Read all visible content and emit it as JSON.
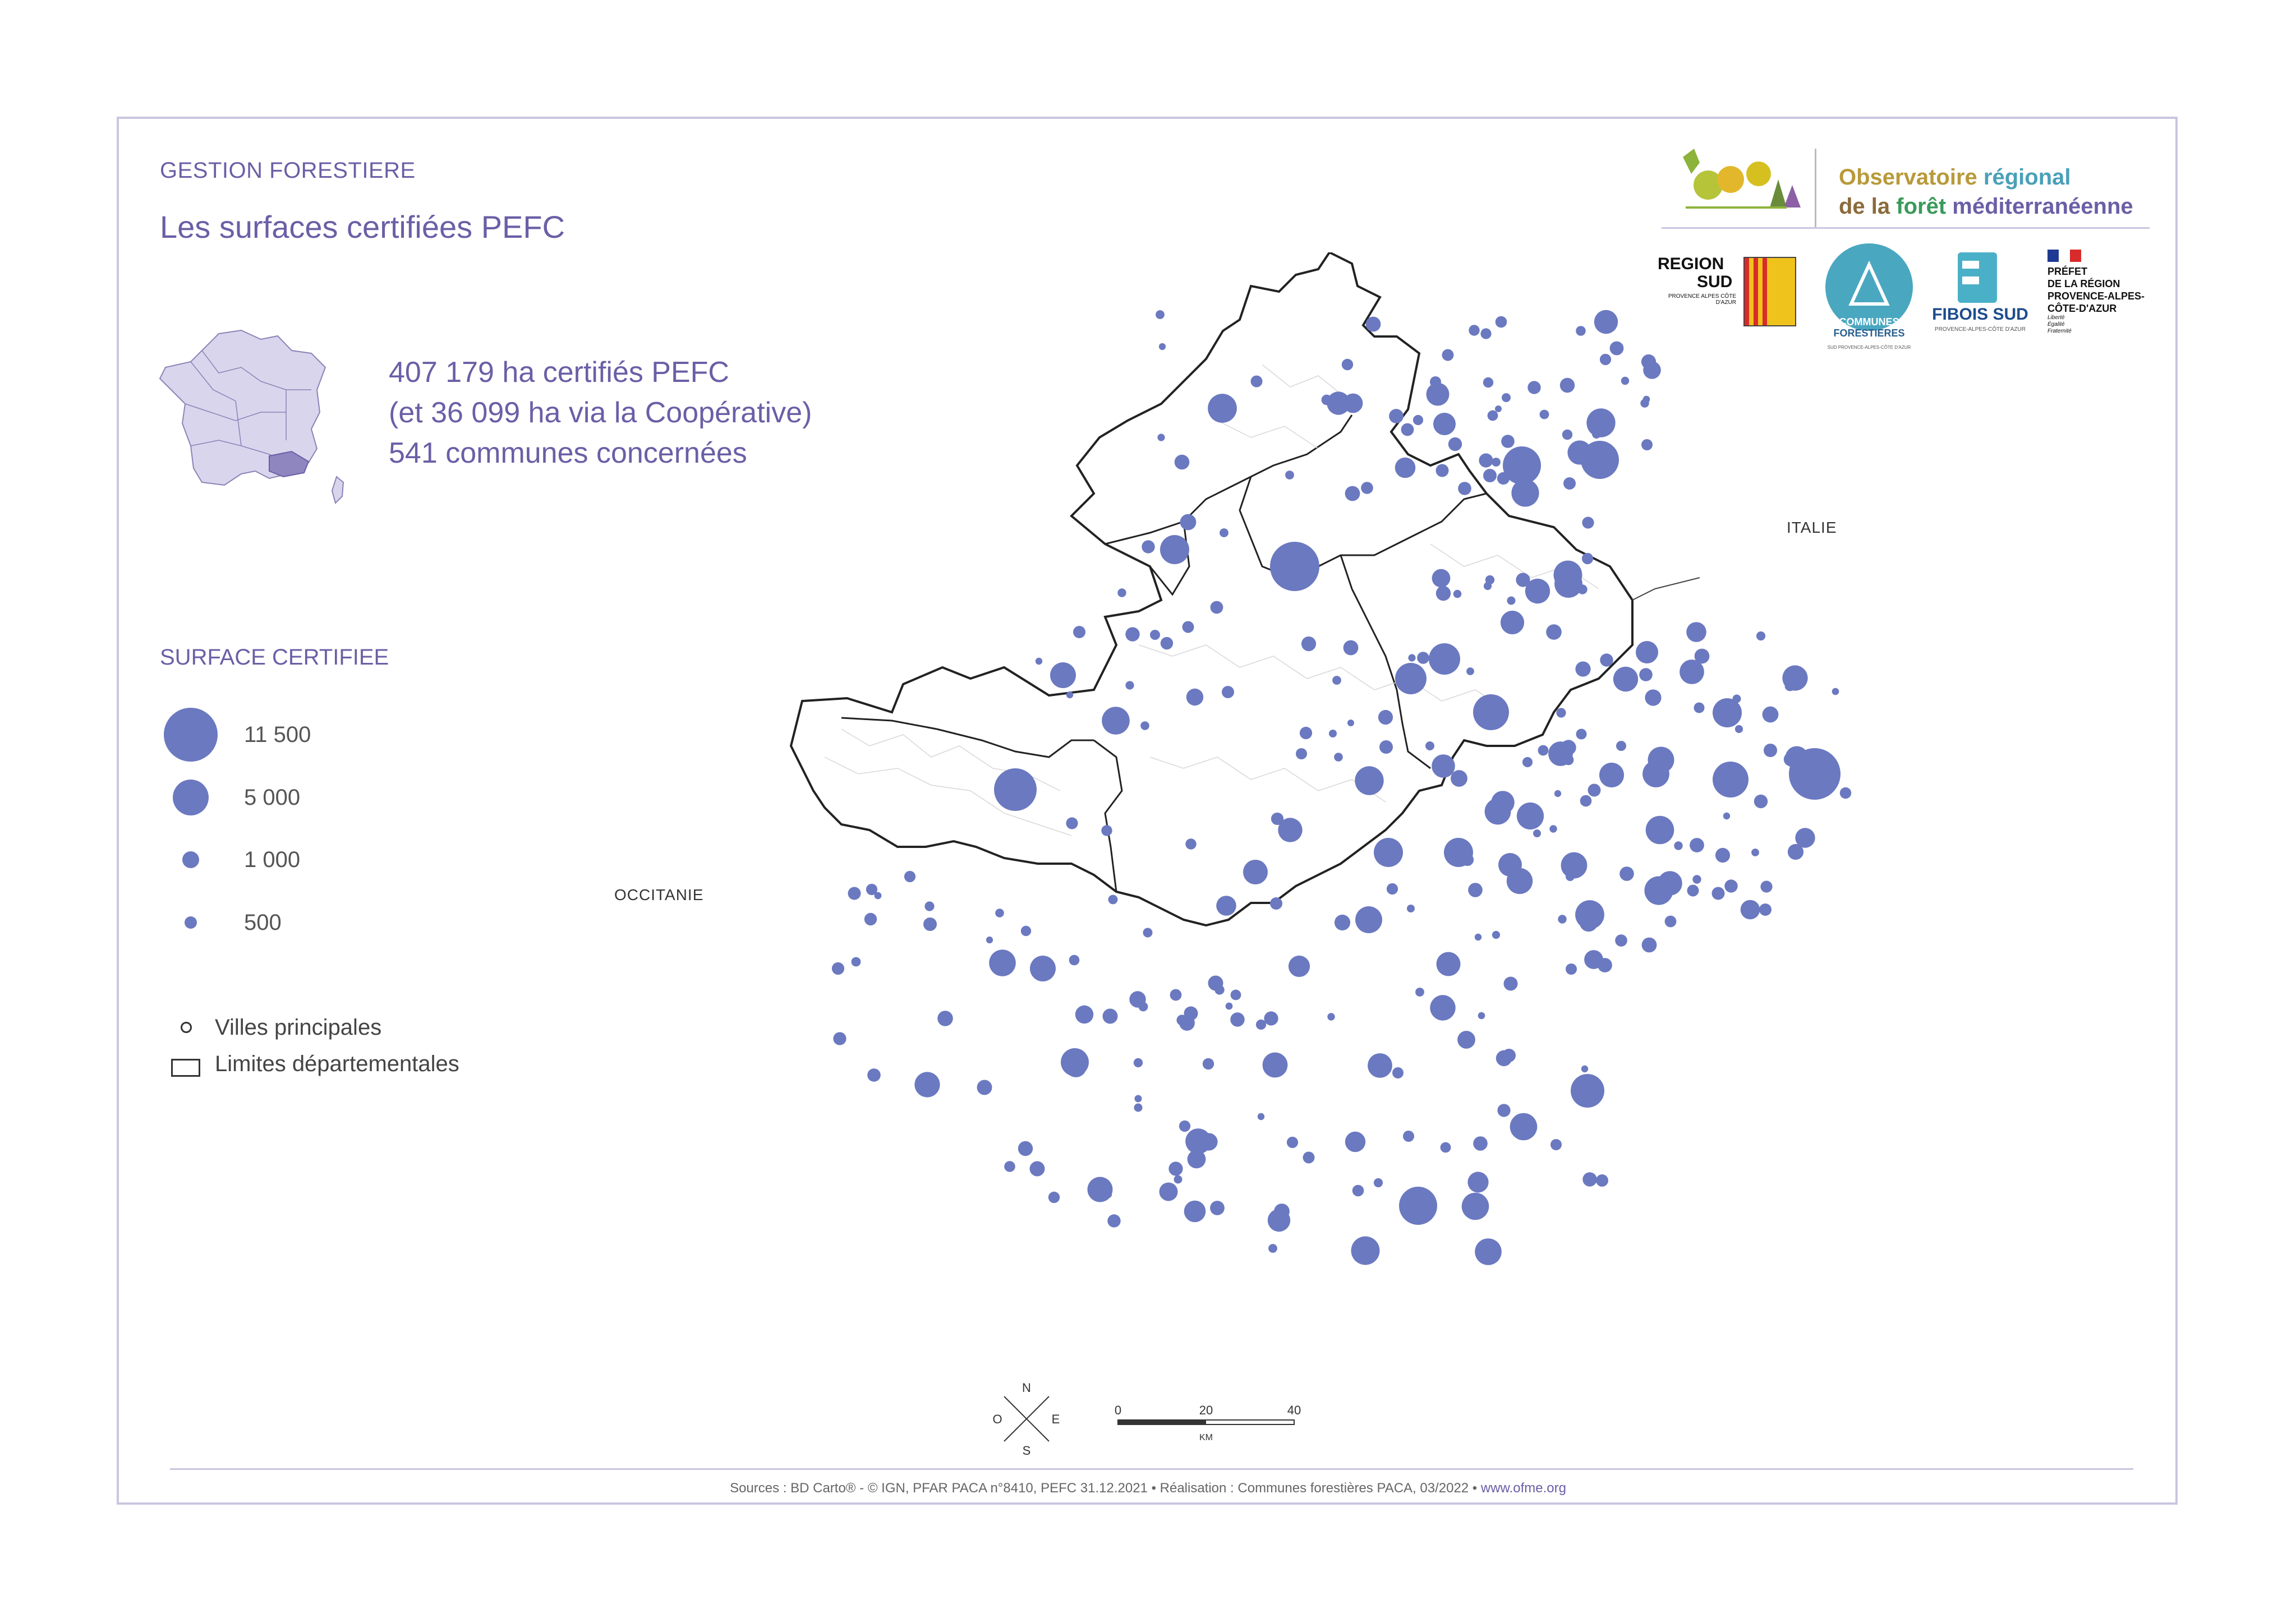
{
  "header": {
    "section": "GESTION FORESTIERE",
    "title": "Les surfaces certifiées PEFC"
  },
  "stats": {
    "line1": "407 179 ha certifiés PEFC",
    "line2": "(et 36 099 ha via la Coopérative)",
    "line3": "541 communes concernées"
  },
  "legend": {
    "title": "SURFACE CERTIFIEE",
    "sizes": [
      {
        "label": "11 500",
        "value": 11500
      },
      {
        "label": "5 000",
        "value": 5000
      },
      {
        "label": "1 000",
        "value": 1000
      },
      {
        "label": "500",
        "value": 500
      }
    ],
    "cities_label": "Villes principales",
    "limits_label": "Limites départementales"
  },
  "map_labels": {
    "occitanie": "OCCITANIE",
    "italie": "ITALIE"
  },
  "scale": {
    "ticks": [
      "0",
      "20",
      "40"
    ],
    "unit": "KM"
  },
  "compass": {
    "n": "N",
    "s": "S",
    "e": "E",
    "o": "O"
  },
  "logos": {
    "observatoire_line1a": "Observatoire",
    "observatoire_line1b": "régional",
    "observatoire_line2a": "de la",
    "observatoire_line2b": "forêt",
    "observatoire_line2c": "méditerranéenne",
    "region_sud_1": "REGION",
    "region_sud_2": "SUD",
    "region_sud_3": "PROVENCE ALPES CÔTE D'AZUR",
    "communes_1": "COMMUNES",
    "communes_2": "FORESTIERES",
    "communes_3": "SUD PROVENCE-ALPES-CÔTE D'AZUR",
    "fibois_1": "FIBOIS SUD",
    "fibois_2": "PROVENCE-ALPES-CÔTE D'AZUR",
    "prefet_1": "PRÉFET",
    "prefet_2": "DE LA RÉGION",
    "prefet_3": "PROVENCE-ALPES-",
    "prefet_4": "CÔTE-D'AZUR",
    "prefet_5": "Liberté Égalité Fraternité"
  },
  "sources": {
    "text": "Sources : BD Carto® - © IGN, PFAR PACA n°8410, PEFC 31.12.2021 • Réalisation : Communes forestières PACA, 03/2022 • ",
    "url": "www.ofme.org"
  },
  "colors": {
    "accent": "#6a5fa6",
    "dot": "#6b79c0",
    "france_fill": "#d9d5ec",
    "paca_fill": "#8f86c0"
  }
}
